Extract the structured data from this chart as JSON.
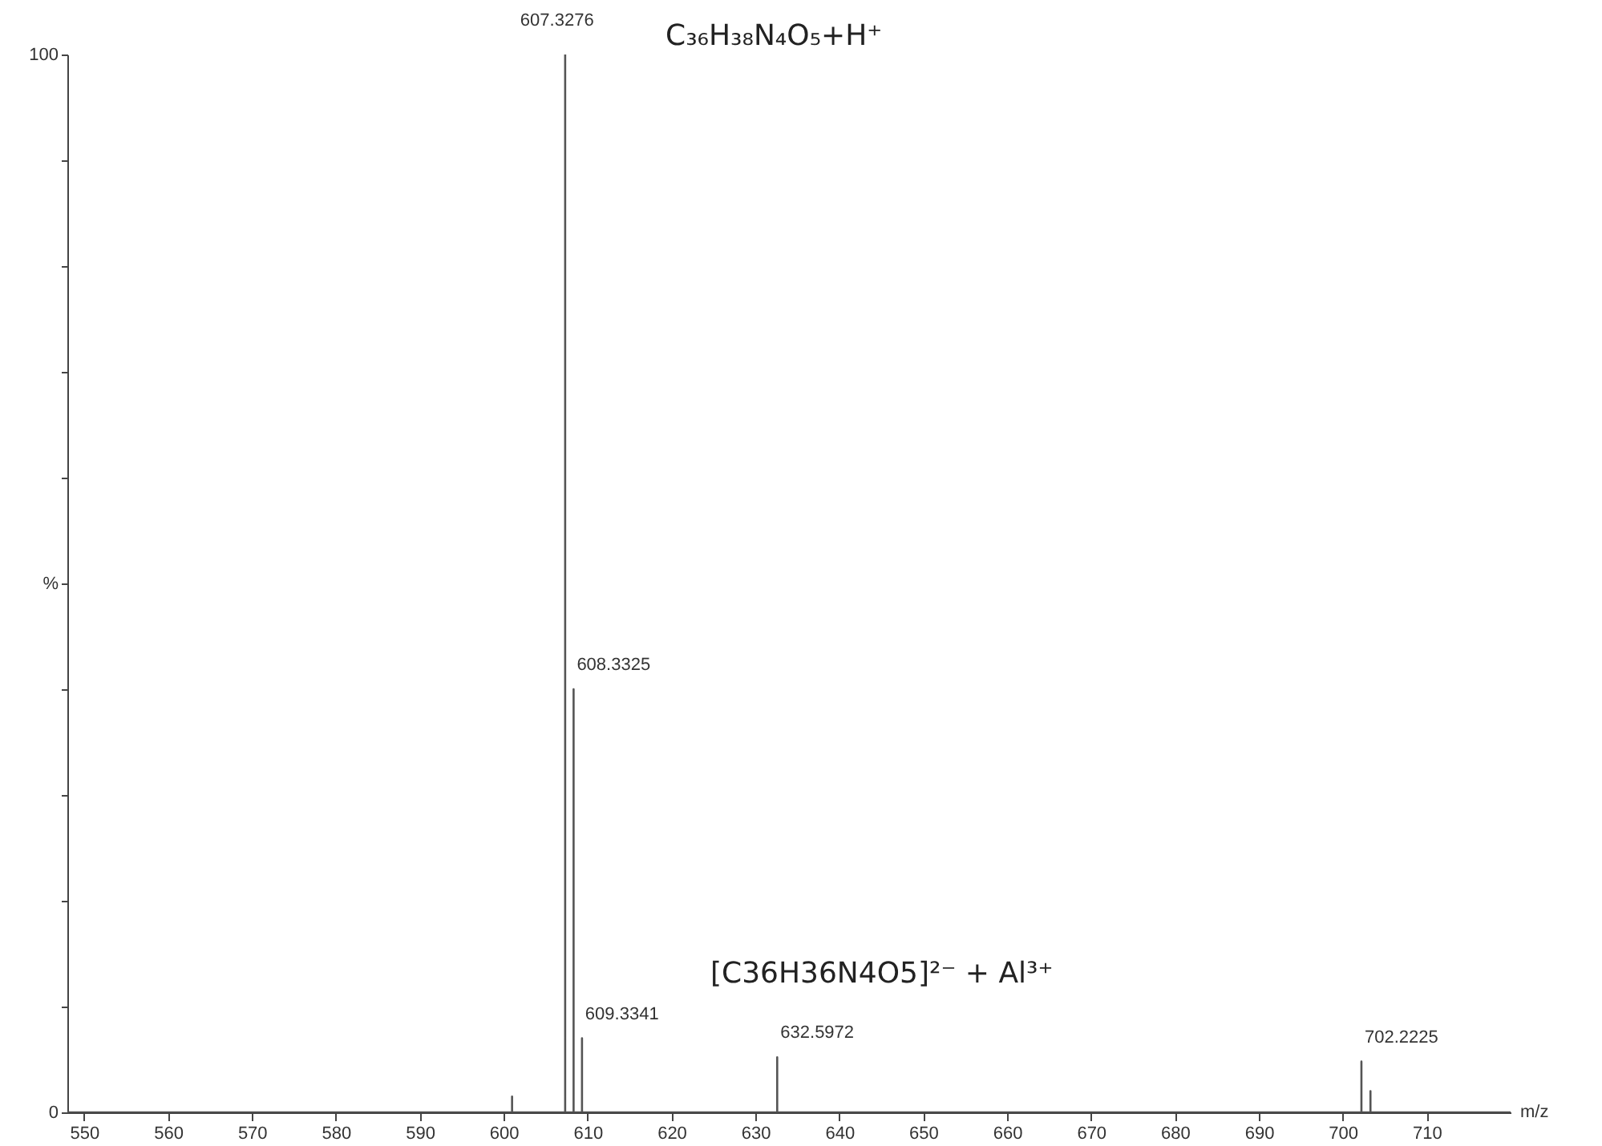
{
  "chart_data": {
    "type": "line",
    "xlabel": "m/z",
    "series": [
      {
        "color": "#555555",
        "x": [
          548,
          601.0,
          601.0,
          601.0,
          607.3276,
          607.3276,
          607.3276,
          608.3325,
          608.3325,
          608.3325,
          609.3341,
          609.3341,
          609.3341,
          632.5972,
          632.5972,
          632.5972,
          702.2225,
          702.2225,
          702.2225,
          703.3,
          703.3,
          703.3,
          720
        ],
        "values": [
          0,
          0,
          1.5,
          0,
          0,
          100,
          0,
          0,
          40,
          0,
          0,
          7,
          0,
          0,
          5.2,
          0,
          0,
          4.8,
          0,
          0,
          2,
          0,
          0
        ]
      }
    ],
    "xlim": [
      548,
      720
    ],
    "xticks": [
      550,
      560,
      570,
      580,
      590,
      600,
      610,
      620,
      630,
      640,
      650,
      660,
      670,
      680,
      690,
      700,
      710
    ],
    "ylim": [
      0,
      100
    ],
    "yticks": [
      0,
      {
        "value": 10,
        "label": null
      },
      {
        "value": 20,
        "label": null
      },
      {
        "value": 30,
        "label": null
      },
      {
        "value": 40,
        "label": null
      },
      {
        "value": 50,
        "label": "%"
      },
      {
        "value": 60,
        "label": null
      },
      {
        "value": 70,
        "label": null
      },
      {
        "value": 80,
        "label": null
      },
      {
        "value": 90,
        "label": null
      },
      100
    ],
    "grid": false,
    "marker": "none",
    "line_style": "solid",
    "annotations": [
      {
        "text": "607.3276",
        "x": 607.3276,
        "y": 100
      },
      {
        "text": "608.3325",
        "x": 608.3325,
        "y": 40
      },
      {
        "text": "609.3341",
        "x": 609.3341,
        "y": 7
      },
      {
        "text": "632.5972",
        "x": 632.5972,
        "y": 5.2
      },
      {
        "text": "702.2225",
        "x": 702.2225,
        "y": 4.8
      },
      "C₃₆H₃₈N₄O₅+H⁺",
      "[C36H36N4O5]²⁻ + Al³⁺"
    ]
  }
}
